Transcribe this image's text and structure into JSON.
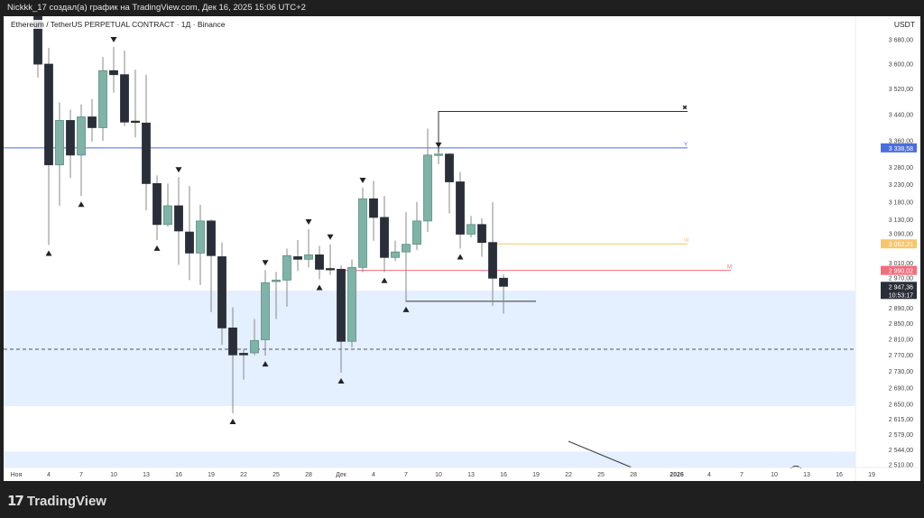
{
  "header": {
    "share_text": "Nickkk_17 создал(а) график на TradingView.com, Дек 16, 2025 15:06 UTC+2"
  },
  "chart": {
    "symbol_title": "Ethereum / TetherUS PERPETUAL CONTRACT · 1Д · Binance",
    "currency": "USDT"
  },
  "footer": {
    "logo_text": "TradingView"
  },
  "chart_data": {
    "type": "candlestick",
    "y_scale": "log",
    "ylim": [
      2500,
      3700
    ],
    "y_ticks": [
      "3 680,00",
      "3 600,00",
      "3 520,00",
      "3 440,00",
      "3 360,00",
      "3 280,00",
      "3 230,00",
      "3 180,00",
      "3 130,00",
      "3 090,00",
      "3 010,00",
      "2 970,00",
      "2 890,00",
      "2 850,00",
      "2 810,00",
      "2 770,00",
      "2 730,00",
      "2 690,00",
      "2 650,00",
      "2 615,00",
      "2 579,00",
      "2 544,00",
      "2 510,00"
    ],
    "x_ticks": [
      "Ноя",
      "4",
      "7",
      "10",
      "13",
      "16",
      "19",
      "22",
      "25",
      "28",
      "Дек",
      "4",
      "7",
      "10",
      "13",
      "16",
      "19",
      "22",
      "25",
      "28",
      "2026",
      "4",
      "7",
      "10",
      "13",
      "16",
      "19"
    ],
    "colors": {
      "up": "#7fb3a7",
      "down": "#2a2e39",
      "blue_line": "#4a6ee0",
      "orange_line": "#f9c56b",
      "red_line": "#f26d7d",
      "zone": "#e4efff"
    },
    "candles_ohlc": [
      [
        "2025-11-03",
        3760,
        3790,
        3557,
        3600
      ],
      [
        "2025-11-04",
        3600,
        3653,
        3059,
        3288
      ],
      [
        "2025-11-05",
        3288,
        3478,
        3169,
        3422
      ],
      [
        "2025-11-06",
        3422,
        3455,
        3249,
        3317
      ],
      [
        "2025-11-07",
        3317,
        3472,
        3197,
        3433
      ],
      [
        "2025-11-08",
        3433,
        3489,
        3357,
        3400
      ],
      [
        "2025-11-09",
        3400,
        3623,
        3360,
        3579
      ],
      [
        "2025-11-10",
        3579,
        3656,
        3509,
        3566
      ],
      [
        "2025-11-11",
        3566,
        3644,
        3405,
        3417
      ],
      [
        "2025-11-12",
        3420,
        3582,
        3370,
        3417
      ],
      [
        "2025-11-13",
        3414,
        3566,
        3156,
        3233
      ],
      [
        "2025-11-14",
        3233,
        3257,
        3073,
        3116
      ],
      [
        "2025-11-15",
        3116,
        3233,
        3110,
        3169
      ],
      [
        "2025-11-16",
        3169,
        3252,
        3005,
        3098
      ],
      [
        "2025-11-17",
        3095,
        3226,
        2964,
        3037
      ],
      [
        "2025-11-18",
        3037,
        3172,
        2951,
        3126
      ],
      [
        "2025-11-19",
        3126,
        3130,
        2880,
        3030
      ],
      [
        "2025-11-20",
        3027,
        3066,
        2796,
        2839
      ],
      [
        "2025-11-21",
        2839,
        2892,
        2629,
        2771
      ],
      [
        "2025-11-22",
        2775,
        2785,
        2710,
        2771
      ],
      [
        "2025-11-23",
        2776,
        2862,
        2770,
        2807
      ],
      [
        "2025-11-24",
        2809,
        2991,
        2769,
        2957
      ],
      [
        "2025-11-25",
        2960,
        2986,
        2862,
        2964
      ],
      [
        "2025-11-26",
        2964,
        3049,
        2894,
        3030
      ],
      [
        "2025-11-27",
        3027,
        3073,
        2988,
        3020
      ],
      [
        "2025-11-28",
        3020,
        3103,
        2998,
        3032
      ],
      [
        "2025-11-29",
        3032,
        3057,
        2966,
        2993
      ],
      [
        "2025-11-30",
        2995,
        3061,
        2978,
        2993
      ],
      [
        "2025-12-01",
        2993,
        3003,
        2727,
        2805
      ],
      [
        "2025-12-02",
        2805,
        3020,
        2790,
        2998
      ],
      [
        "2025-12-03",
        2998,
        3221,
        2985,
        3189
      ],
      [
        "2025-12-04",
        3189,
        3241,
        3071,
        3136
      ],
      [
        "2025-12-05",
        3136,
        3197,
        2985,
        3025
      ],
      [
        "2025-12-06",
        3025,
        3071,
        3015,
        3040
      ],
      [
        "2025-12-07",
        3040,
        3151,
        2908,
        3061
      ],
      [
        "2025-12-08",
        3061,
        3180,
        3045,
        3126
      ],
      [
        "2025-12-09",
        3126,
        3397,
        3095,
        3317
      ],
      [
        "2025-12-10",
        3317,
        3325,
        3290,
        3320
      ],
      [
        "2025-12-11",
        3320,
        3323,
        3147,
        3238
      ],
      [
        "2025-12-12",
        3238,
        3267,
        3049,
        3089
      ],
      [
        "2025-12-13",
        3089,
        3140,
        3080,
        3116
      ],
      [
        "2025-12-14",
        3116,
        3134,
        3027,
        3066
      ],
      [
        "2025-12-15",
        3066,
        3179,
        2896,
        2969
      ],
      [
        "2025-12-16",
        2969,
        2979,
        2876,
        2947.36
      ]
    ],
    "markers": [
      [
        "2025-11-04",
        "up"
      ],
      [
        "2025-11-07",
        "up"
      ],
      [
        "2025-11-10",
        "down"
      ],
      [
        "2025-11-14",
        "up"
      ],
      [
        "2025-11-16",
        "down"
      ],
      [
        "2025-11-21",
        "up"
      ],
      [
        "2025-11-24",
        "down"
      ],
      [
        "2025-11-24",
        "up"
      ],
      [
        "2025-11-28",
        "down"
      ],
      [
        "2025-11-29",
        "up"
      ],
      [
        "2025-11-30",
        "down"
      ],
      [
        "2025-12-01",
        "up"
      ],
      [
        "2025-12-03",
        "down"
      ],
      [
        "2025-12-05",
        "up"
      ],
      [
        "2025-12-07",
        "up"
      ],
      [
        "2025-12-10",
        "down"
      ],
      [
        "2025-12-12",
        "up"
      ]
    ],
    "levels": [
      {
        "label": "Y",
        "price": 3338.58,
        "price_label": "3 338,58",
        "color": "#4a6ee0",
        "from": "2025-10-29",
        "to": "2026-01-02"
      },
      {
        "label": "W",
        "price": 3062.21,
        "price_label": "3 062,21",
        "color": "#f9c56b",
        "from": "2025-12-15",
        "to": "2026-01-02"
      },
      {
        "label": "M",
        "price": 2990.02,
        "price_label": "2 990,02",
        "color": "#f26d7d",
        "from": "2025-12-01",
        "to": "2026-01-06"
      }
    ],
    "last_price": {
      "price": 2947.36,
      "label": "2 947,36",
      "countdown": "10:53:17"
    },
    "high_line": {
      "price": 3450,
      "from": "2025-12-10",
      "to": "2026-01-02",
      "marker": "✖"
    },
    "low_line": {
      "price": 2908,
      "from": "2025-12-07",
      "to": "2025-12-19"
    },
    "dashed_line": 2785,
    "zones": [
      [
        2936,
        2646
      ],
      [
        2540,
        2480
      ]
    ]
  }
}
